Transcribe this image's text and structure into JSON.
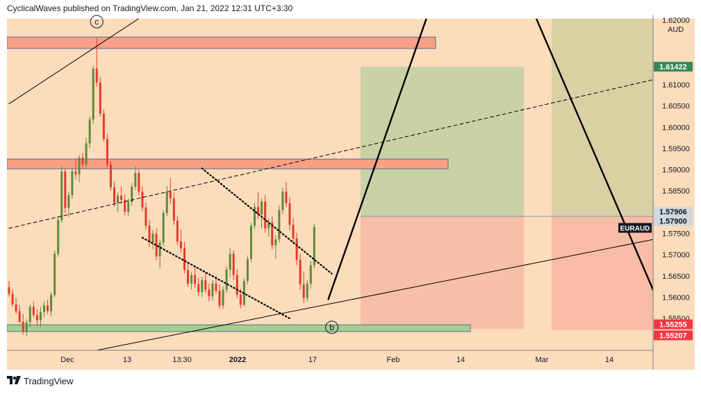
{
  "header": {
    "text": "CyclicalWaves published on TradingView.com, Jan 21, 2022 12:31 UTC+3:30"
  },
  "footer": {
    "brand": "TradingView",
    "logo_icon": "tradingview-logo-icon"
  },
  "colors": {
    "plot_bg": "#fbdcbb",
    "candle_up": "#5b8a3c",
    "candle_down": "#e5392b",
    "resistance_box": "#f7a084",
    "support_box": "#a5cf8e",
    "target_zone": "#c6d0a4",
    "stop_zone": "#f8bca7",
    "right_zone_top": "#d9d0a4",
    "current_price_label": "#131722",
    "high_label": "#2e8b57",
    "low_label": "#f23645"
  },
  "chart_data": {
    "type": "candlestick",
    "symbol": "EURAUD",
    "currency": "AUD",
    "x_tick_labels": [
      "Dec",
      "13",
      "13:30",
      "2022",
      "17",
      "Feb",
      "14",
      "Mar",
      "14"
    ],
    "y_ticks": [
      1.61,
      1.605,
      1.6,
      1.595,
      1.59,
      1.585,
      1.58,
      1.575,
      1.57,
      1.565,
      1.56,
      1.555
    ],
    "y_tick_labels": [
      "1.61000",
      "1.60500",
      "1.60000",
      "1.59500",
      "1.59000",
      "1.58500",
      "1.58000",
      "1.57500",
      "1.57000",
      "1.56500",
      "1.56000",
      "1.55500"
    ],
    "ylim": [
      1.5475,
      1.6255
    ],
    "top_partial_label": "1.62000",
    "price_labels": [
      {
        "text": "1.61422",
        "value": 1.61422,
        "kind": "target"
      },
      {
        "text": "1.57906",
        "value": 1.57906,
        "kind": "entry"
      },
      {
        "text": "1.57900",
        "value": 1.579,
        "kind": "entry"
      },
      {
        "text": "1.55255",
        "value": 1.55255,
        "kind": "stop"
      },
      {
        "text": "1.55207",
        "value": 1.55207,
        "kind": "stop"
      }
    ],
    "symbol_label": "EURAUD",
    "symbol_label_value": 1.5763,
    "wave_labels": [
      {
        "text": "c",
        "x_index": 25,
        "value": 1.6248
      },
      {
        "text": "b",
        "x_index": 92,
        "value": 1.5529
      }
    ],
    "zones": {
      "resistance_upper": [
        1.6185,
        1.6212
      ],
      "resistance_lower": [
        1.5902,
        1.5925
      ],
      "support": [
        1.5519,
        1.5535
      ],
      "target": [
        1.579,
        1.61422
      ],
      "stop": [
        1.55255,
        1.579
      ]
    },
    "candles_ohlc": [
      [
        1.5623,
        1.5638,
        1.5601,
        1.5608
      ],
      [
        1.5608,
        1.5619,
        1.5578,
        1.5583
      ],
      [
        1.5583,
        1.5598,
        1.556,
        1.5567
      ],
      [
        1.5567,
        1.5582,
        1.5538,
        1.5542
      ],
      [
        1.5542,
        1.5561,
        1.5512,
        1.5519
      ],
      [
        1.5519,
        1.5548,
        1.5508,
        1.5541
      ],
      [
        1.5541,
        1.5583,
        1.553,
        1.5577
      ],
      [
        1.5577,
        1.5589,
        1.5552,
        1.5558
      ],
      [
        1.5558,
        1.5571,
        1.5532,
        1.5546
      ],
      [
        1.5546,
        1.5577,
        1.553,
        1.5565
      ],
      [
        1.5565,
        1.559,
        1.5553,
        1.5581
      ],
      [
        1.5581,
        1.5594,
        1.556,
        1.5567
      ],
      [
        1.5567,
        1.5612,
        1.5555,
        1.5605
      ],
      [
        1.5605,
        1.571,
        1.56,
        1.5702
      ],
      [
        1.5702,
        1.579,
        1.5695,
        1.5781
      ],
      [
        1.5781,
        1.5908,
        1.5775,
        1.5895
      ],
      [
        1.5895,
        1.5902,
        1.5798,
        1.581
      ],
      [
        1.581,
        1.5848,
        1.5788,
        1.584
      ],
      [
        1.584,
        1.5905,
        1.5832,
        1.5896
      ],
      [
        1.5896,
        1.5925,
        1.5876,
        1.5889
      ],
      [
        1.5889,
        1.5934,
        1.587,
        1.5928
      ],
      [
        1.5928,
        1.594,
        1.5905,
        1.5912
      ],
      [
        1.5912,
        1.5975,
        1.59,
        1.5962
      ],
      [
        1.5962,
        1.6025,
        1.595,
        1.6018
      ],
      [
        1.6018,
        1.6145,
        1.6008,
        1.6138
      ],
      [
        1.6138,
        1.621,
        1.6095,
        1.6105
      ],
      [
        1.6105,
        1.6118,
        1.6025,
        1.6032
      ],
      [
        1.6032,
        1.6041,
        1.5966,
        1.5972
      ],
      [
        1.5972,
        1.5985,
        1.5905,
        1.5912
      ],
      [
        1.5912,
        1.592,
        1.585,
        1.5858
      ],
      [
        1.5858,
        1.5872,
        1.5813,
        1.5822
      ],
      [
        1.5822,
        1.5846,
        1.5801,
        1.5839
      ],
      [
        1.5839,
        1.5861,
        1.582,
        1.5829
      ],
      [
        1.5829,
        1.5842,
        1.5792,
        1.5801
      ],
      [
        1.5801,
        1.5832,
        1.579,
        1.5824
      ],
      [
        1.5824,
        1.5868,
        1.5815,
        1.586
      ],
      [
        1.586,
        1.5908,
        1.5852,
        1.5892
      ],
      [
        1.5892,
        1.59,
        1.584,
        1.5848
      ],
      [
        1.5848,
        1.586,
        1.5802,
        1.5811
      ],
      [
        1.5811,
        1.5823,
        1.576,
        1.5768
      ],
      [
        1.5768,
        1.5782,
        1.5718,
        1.5729
      ],
      [
        1.5729,
        1.5758,
        1.5712,
        1.5749
      ],
      [
        1.5749,
        1.5762,
        1.5688,
        1.5696
      ],
      [
        1.5696,
        1.5735,
        1.5668,
        1.5728
      ],
      [
        1.5728,
        1.5805,
        1.572,
        1.5798
      ],
      [
        1.5798,
        1.5862,
        1.579,
        1.5848
      ],
      [
        1.5848,
        1.5881,
        1.582,
        1.5832
      ],
      [
        1.5832,
        1.5846,
        1.577,
        1.578
      ],
      [
        1.578,
        1.5792,
        1.5722,
        1.5731
      ],
      [
        1.5731,
        1.576,
        1.5705,
        1.5715
      ],
      [
        1.5715,
        1.573,
        1.5656,
        1.5664
      ],
      [
        1.5664,
        1.568,
        1.5625,
        1.5632
      ],
      [
        1.5632,
        1.566,
        1.5618,
        1.5652
      ],
      [
        1.5652,
        1.567,
        1.5622,
        1.5631
      ],
      [
        1.5631,
        1.5645,
        1.5602,
        1.5612
      ],
      [
        1.5612,
        1.5648,
        1.56,
        1.564
      ],
      [
        1.564,
        1.5658,
        1.561,
        1.5618
      ],
      [
        1.5618,
        1.5632,
        1.559,
        1.5602
      ],
      [
        1.5602,
        1.564,
        1.5592,
        1.5632
      ],
      [
        1.5632,
        1.5651,
        1.5608,
        1.5615
      ],
      [
        1.5615,
        1.563,
        1.5572,
        1.558
      ],
      [
        1.558,
        1.5625,
        1.5572,
        1.5618
      ],
      [
        1.5618,
        1.5672,
        1.561,
        1.5665
      ],
      [
        1.5665,
        1.5715,
        1.5648,
        1.5702
      ],
      [
        1.5702,
        1.571,
        1.564,
        1.5652
      ],
      [
        1.5652,
        1.5666,
        1.5598,
        1.5606
      ],
      [
        1.5606,
        1.562,
        1.5574,
        1.5582
      ],
      [
        1.5582,
        1.5645,
        1.5578,
        1.5638
      ],
      [
        1.5638,
        1.5698,
        1.563,
        1.569
      ],
      [
        1.569,
        1.5775,
        1.5682,
        1.5768
      ],
      [
        1.5768,
        1.5822,
        1.576,
        1.5812
      ],
      [
        1.5812,
        1.5848,
        1.5784,
        1.5795
      ],
      [
        1.5795,
        1.5832,
        1.5762,
        1.5825
      ],
      [
        1.5825,
        1.584,
        1.5752,
        1.5762
      ],
      [
        1.5762,
        1.5785,
        1.5742,
        1.5775
      ],
      [
        1.5775,
        1.579,
        1.5712,
        1.5722
      ],
      [
        1.5722,
        1.5745,
        1.569,
        1.5736
      ],
      [
        1.5736,
        1.5815,
        1.5728,
        1.5805
      ],
      [
        1.5805,
        1.5858,
        1.5795,
        1.5848
      ],
      [
        1.5848,
        1.587,
        1.5812,
        1.5821
      ],
      [
        1.5821,
        1.5835,
        1.5758,
        1.577
      ],
      [
        1.577,
        1.5786,
        1.5725,
        1.5738
      ],
      [
        1.5738,
        1.5752,
        1.5676,
        1.5688
      ],
      [
        1.5688,
        1.5702,
        1.5618,
        1.563
      ],
      [
        1.563,
        1.566,
        1.5586,
        1.5598
      ],
      [
        1.5598,
        1.564,
        1.559,
        1.5632
      ],
      [
        1.5632,
        1.5685,
        1.562,
        1.5675
      ],
      [
        1.5675,
        1.5772,
        1.5668,
        1.5765
      ]
    ],
    "drawings": [
      {
        "name": "upper-channel-line",
        "style": "solid",
        "from": [
          0,
          1.6055
        ],
        "to": [
          60,
          1.638
        ]
      },
      {
        "name": "midline",
        "style": "dashed",
        "from": [
          0,
          1.5762
        ],
        "to": [
          230,
          1.62
        ]
      },
      {
        "name": "lower-channel-line",
        "style": "solid",
        "from": [
          25,
          1.5475
        ],
        "to": [
          230,
          1.5812
        ]
      },
      {
        "name": "wedge-upper",
        "style": "dotted",
        "from": [
          55,
          1.5903
        ],
        "to": [
          92,
          1.5655
        ]
      },
      {
        "name": "wedge-lower",
        "style": "dotted",
        "from": [
          38,
          1.574
        ],
        "to": [
          80,
          1.555
        ]
      },
      {
        "name": "steep-up-line",
        "style": "bold",
        "from": [
          91,
          1.5595
        ],
        "to": [
          120,
          1.628
        ]
      },
      {
        "name": "steep-down-line",
        "style": "bold",
        "from": [
          149,
          1.628
        ],
        "to": [
          191,
          1.5475
        ]
      }
    ]
  }
}
